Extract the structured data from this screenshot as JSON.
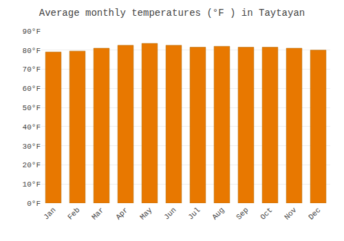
{
  "chart_data": {
    "type": "bar",
    "title": "Average monthly temperatures (°F ) in Taytayan",
    "categories": [
      "Jan",
      "Feb",
      "Mar",
      "Apr",
      "May",
      "Jun",
      "Jul",
      "Aug",
      "Sep",
      "Oct",
      "Nov",
      "Dec"
    ],
    "values": [
      79.0,
      79.5,
      81.0,
      82.5,
      83.5,
      82.5,
      81.5,
      82.0,
      81.5,
      81.5,
      81.0,
      80.0
    ],
    "color": "#E87800",
    "ylim": [
      0,
      90
    ],
    "yticks": [
      {
        "value": 0,
        "label": "0°F"
      },
      {
        "value": 10,
        "label": "10°F"
      },
      {
        "value": 20,
        "label": "20°F"
      },
      {
        "value": 30,
        "label": "30°F"
      },
      {
        "value": 40,
        "label": "40°F"
      },
      {
        "value": 50,
        "label": "50°F"
      },
      {
        "value": 60,
        "label": "60°F"
      },
      {
        "value": 70,
        "label": "70°F"
      },
      {
        "value": 80,
        "label": "80°F"
      },
      {
        "value": 90,
        "label": "90°F"
      }
    ],
    "grid": true
  }
}
